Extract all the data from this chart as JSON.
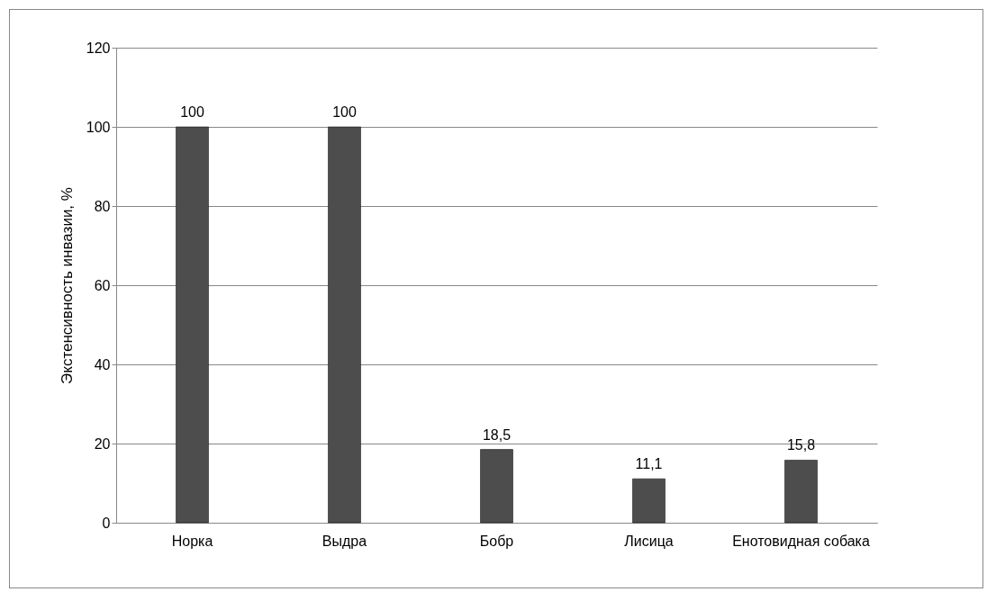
{
  "chart_data": {
    "type": "bar",
    "ylabel": "Экстенсивность инвазии, %",
    "categories": [
      "Норка",
      "Выдра",
      "Бобр",
      "Лисица",
      "Енотовидная собака"
    ],
    "values": [
      100,
      100,
      18.5,
      11.1,
      15.8
    ],
    "value_labels": [
      "100",
      "100",
      "18,5",
      "11,1",
      "15,8"
    ],
    "color": "#4d4d4d",
    "ylim": [
      0,
      120
    ],
    "yticks": [
      0,
      20,
      40,
      60,
      80,
      100,
      120
    ],
    "grid": "y"
  }
}
